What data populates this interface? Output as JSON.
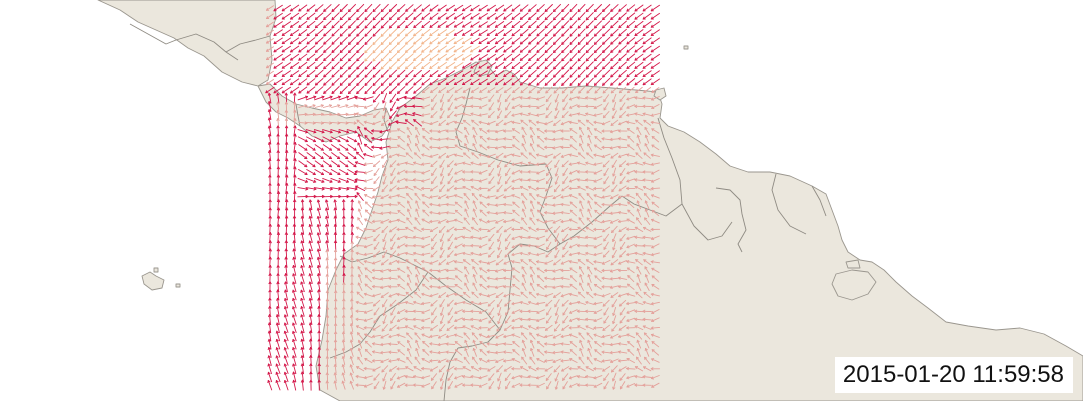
{
  "map": {
    "timestamp": "2015-01-20 11:59:58"
  },
  "layers": {
    "base": "land-countries",
    "overlay": "wind-vector-field"
  },
  "colors": {
    "land_fill": "#ebe7dd",
    "land_stroke": "#9a968e",
    "ocean": "#ffffff",
    "wind_arrow_ocean": "#d4184a",
    "wind_arrow_land": "#e4a09a",
    "wind_arrow_strong": "#f2b48a"
  }
}
